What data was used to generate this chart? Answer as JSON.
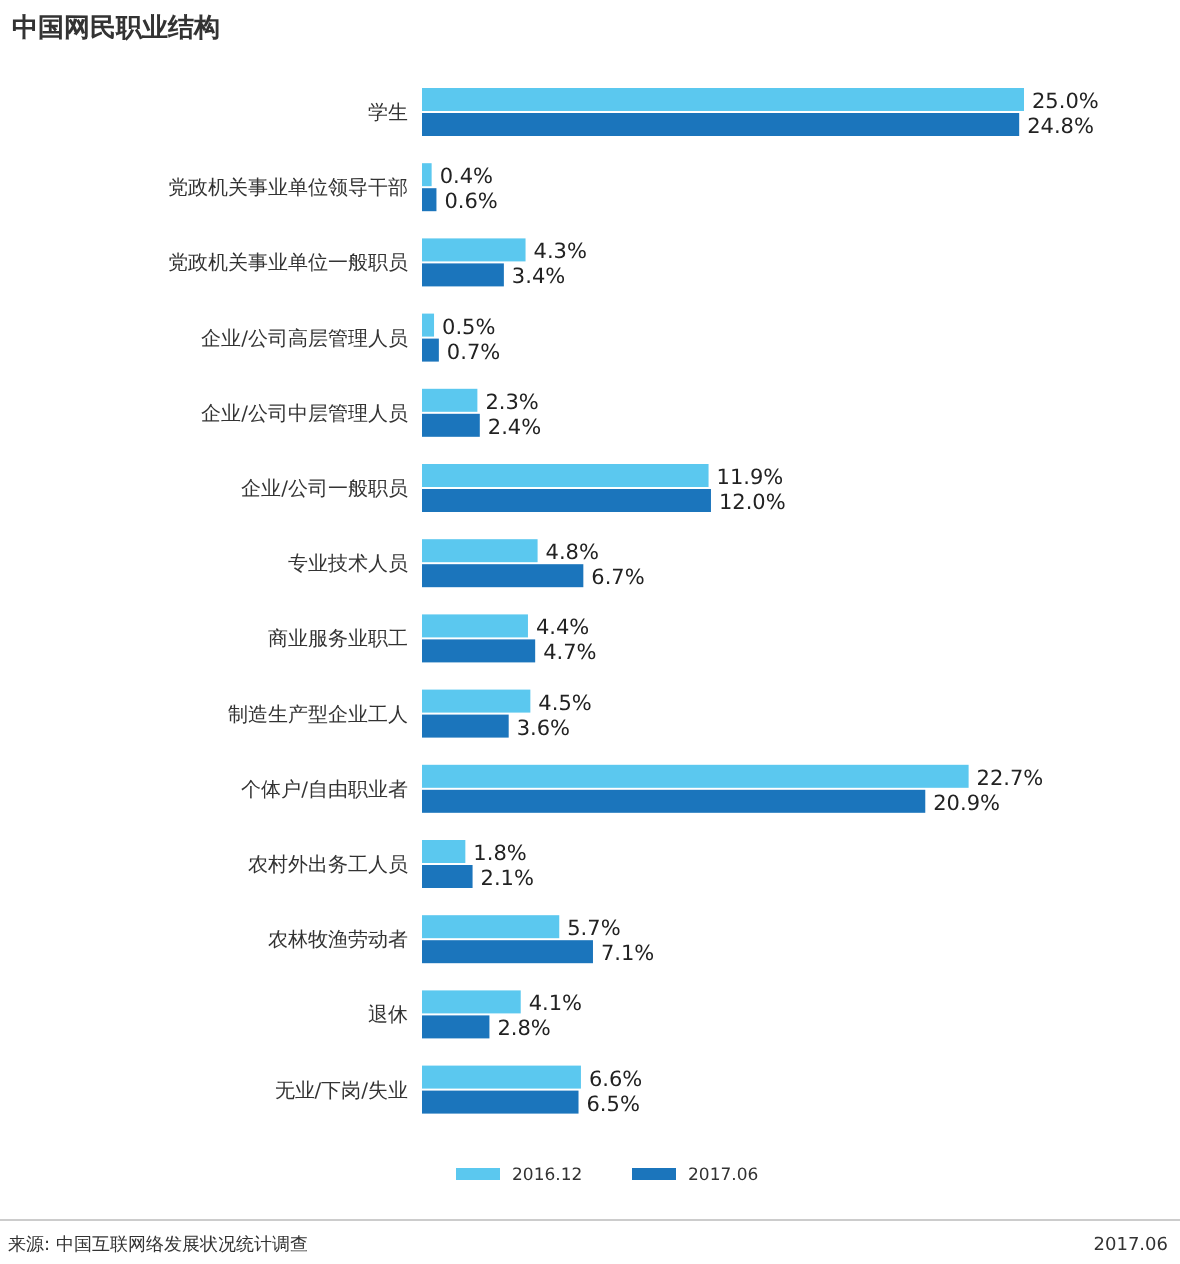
{
  "chart_data": {
    "type": "bar",
    "orientation": "horizontal",
    "title": "中国网民职业结构",
    "categories": [
      "学生",
      "党政机关事业单位领导干部",
      "党政机关事业单位一般职员",
      "企业/公司高层管理人员",
      "企业/公司中层管理人员",
      "企业/公司一般职员",
      "专业技术人员",
      "商业服务业职工",
      "制造生产型企业工人",
      "个体户/自由职业者",
      "农村外出务工人员",
      "农林牧渔劳动者",
      "退休",
      "无业/下岗/失业"
    ],
    "series": [
      {
        "name": "2016.12",
        "color": "#5bc8ef",
        "values": [
          25.0,
          0.4,
          4.3,
          0.5,
          2.3,
          11.9,
          4.8,
          4.4,
          4.5,
          22.7,
          1.8,
          5.7,
          4.1,
          6.6
        ],
        "value_labels": [
          "25.0%",
          "0.4%",
          "4.3%",
          "0.5%",
          "2.3%",
          "11.9%",
          "4.8%",
          "4.4%",
          "4.5%",
          "22.7%",
          "1.8%",
          "5.7%",
          "4.1%",
          "6.6%"
        ]
      },
      {
        "name": "2017.06",
        "color": "#1b75bc",
        "values": [
          24.8,
          0.6,
          3.4,
          0.7,
          2.4,
          12.0,
          6.7,
          4.7,
          3.6,
          20.9,
          2.1,
          7.1,
          2.8,
          6.5
        ],
        "value_labels": [
          "24.8%",
          "0.6%",
          "3.4%",
          "0.7%",
          "2.4%",
          "12.0%",
          "6.7%",
          "4.7%",
          "3.6%",
          "20.9%",
          "2.1%",
          "7.1%",
          "2.8%",
          "6.5%"
        ]
      }
    ],
    "legend": "bottom",
    "annotations": [
      "来源: 中国互联网络发展状况统计调查",
      "2017.06"
    ]
  }
}
